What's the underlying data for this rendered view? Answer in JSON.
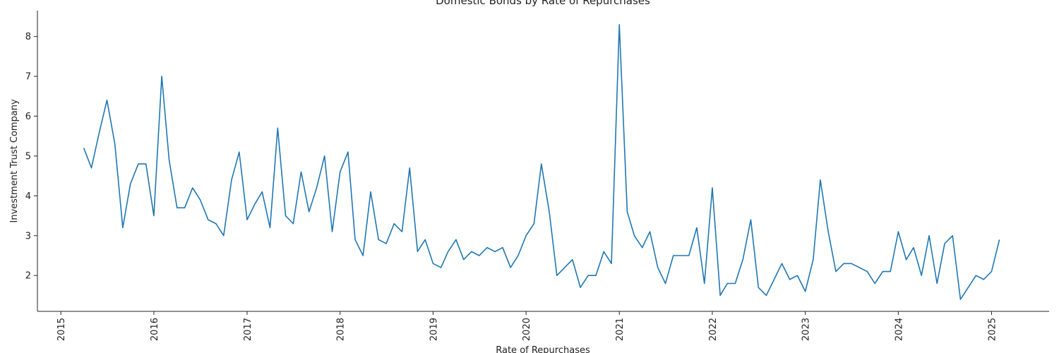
{
  "chart_data": {
    "type": "line",
    "title": "Domestic Bonds by Rate of Repurchases",
    "xlabel": "Rate of Repurchases",
    "ylabel": "Investment Trust Company",
    "xlim": [
      "2014-10-01",
      "2025-08-15"
    ],
    "ylim": [
      1.1,
      8.65
    ],
    "x_ticks": [
      "2015",
      "2016",
      "2017",
      "2018",
      "2019",
      "2020",
      "2021",
      "2022",
      "2023",
      "2024",
      "2025"
    ],
    "y_ticks": [
      "2",
      "3",
      "4",
      "5",
      "6",
      "7",
      "8"
    ],
    "grid": false,
    "color": "#1f77b4",
    "series": [
      {
        "x": [
          "2015-04-01",
          "2015-05-01",
          "2015-06-01",
          "2015-07-01",
          "2015-08-01",
          "2015-09-01",
          "2015-10-01",
          "2015-11-01",
          "2015-12-01",
          "2016-01-01",
          "2016-02-01",
          "2016-03-01",
          "2016-04-01",
          "2016-05-01",
          "2016-06-01",
          "2016-07-01",
          "2016-08-01",
          "2016-09-01",
          "2016-10-01",
          "2016-11-01",
          "2016-12-01",
          "2017-01-01",
          "2017-02-01",
          "2017-03-01",
          "2017-04-01",
          "2017-05-01",
          "2017-06-01",
          "2017-07-01",
          "2017-08-01",
          "2017-09-01",
          "2017-10-01",
          "2017-11-01",
          "2017-12-01",
          "2018-01-01",
          "2018-02-01",
          "2018-03-01",
          "2018-04-01",
          "2018-05-01",
          "2018-06-01",
          "2018-07-01",
          "2018-08-01",
          "2018-09-01",
          "2018-10-01",
          "2018-11-01",
          "2018-12-01",
          "2019-01-01",
          "2019-02-01",
          "2019-03-01",
          "2019-04-01",
          "2019-05-01",
          "2019-06-01",
          "2019-07-01",
          "2019-08-01",
          "2019-09-01",
          "2019-10-01",
          "2019-11-01",
          "2019-12-01",
          "2020-01-01",
          "2020-02-01",
          "2020-03-01",
          "2020-04-01",
          "2020-05-01",
          "2020-07-01",
          "2020-08-01",
          "2020-09-01",
          "2020-10-01",
          "2020-11-01",
          "2020-12-01",
          "2021-01-01",
          "2021-02-01",
          "2021-03-01",
          "2021-04-01",
          "2021-05-01",
          "2021-06-01",
          "2021-07-01",
          "2021-08-01",
          "2021-09-01",
          "2021-10-01",
          "2021-11-01",
          "2021-12-01",
          "2022-01-01",
          "2022-02-01",
          "2022-03-01",
          "2022-04-01",
          "2022-05-01",
          "2022-06-01",
          "2022-07-01",
          "2022-08-01",
          "2022-10-01",
          "2022-11-01",
          "2022-12-01",
          "2023-01-01",
          "2023-02-01",
          "2023-03-01",
          "2023-04-01",
          "2023-05-01",
          "2023-06-01",
          "2023-07-01",
          "2023-09-01",
          "2023-10-01",
          "2023-11-01",
          "2023-12-01",
          "2024-01-01",
          "2024-02-01",
          "2024-03-01",
          "2024-04-01",
          "2024-05-01",
          "2024-06-01",
          "2024-07-01",
          "2024-08-01",
          "2024-09-01",
          "2024-11-01",
          "2024-12-01",
          "2025-01-01",
          "2025-02-01"
        ],
        "values": [
          5.2,
          4.7,
          5.6,
          6.4,
          5.3,
          3.2,
          4.3,
          4.8,
          4.8,
          3.5,
          7.0,
          4.9,
          3.7,
          3.7,
          4.2,
          3.9,
          3.4,
          3.3,
          3.0,
          4.4,
          5.1,
          3.4,
          3.8,
          4.1,
          3.2,
          5.7,
          3.5,
          3.3,
          4.6,
          3.6,
          4.2,
          5.0,
          3.1,
          4.6,
          5.1,
          2.9,
          2.5,
          4.1,
          2.9,
          2.8,
          3.3,
          3.1,
          4.7,
          2.6,
          2.9,
          2.3,
          2.2,
          2.6,
          2.9,
          2.4,
          2.6,
          2.5,
          2.7,
          2.6,
          2.7,
          2.2,
          2.5,
          3.0,
          3.3,
          4.8,
          3.6,
          2.0,
          2.4,
          1.7,
          2.0,
          2.0,
          2.6,
          2.3,
          8.3,
          3.6,
          3.0,
          2.7,
          3.1,
          2.2,
          1.8,
          2.5,
          2.5,
          2.5,
          3.2,
          1.8,
          4.2,
          1.5,
          1.8,
          1.8,
          2.4,
          3.4,
          1.7,
          1.5,
          2.3,
          1.9,
          2.0,
          1.6,
          2.4,
          4.4,
          3.1,
          2.1,
          2.3,
          2.3,
          2.1,
          1.8,
          2.1,
          2.1,
          3.1,
          2.4,
          2.7,
          2.0,
          3.0,
          1.8,
          2.8,
          3.0,
          1.4,
          2.0,
          1.9,
          2.1,
          2.9
        ]
      }
    ]
  }
}
